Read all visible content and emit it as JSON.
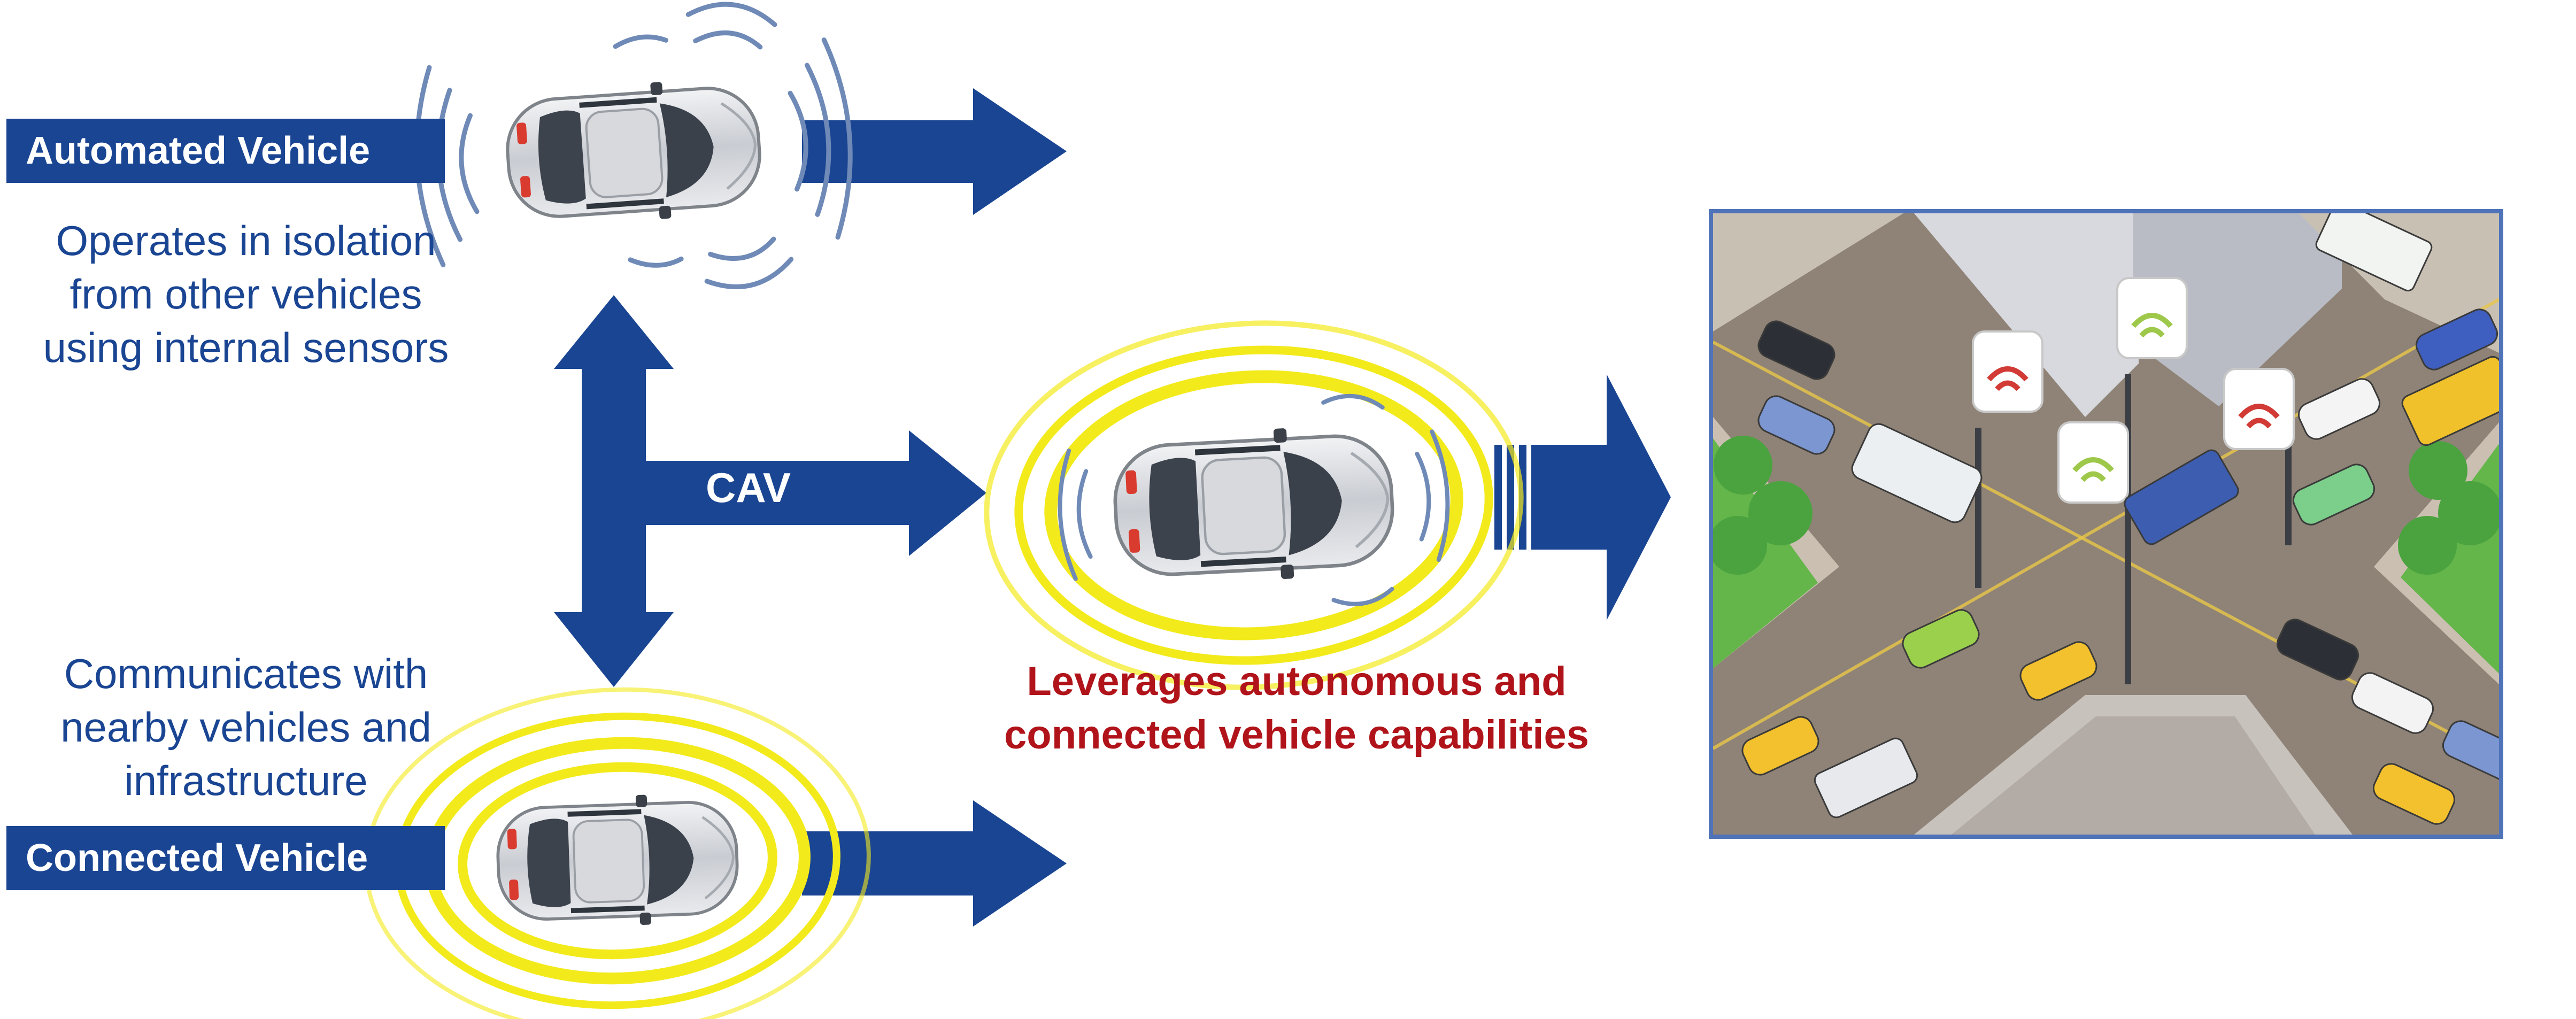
{
  "automated_vehicle": {
    "label": "Automated Vehicle",
    "description": [
      "Operates in isolation",
      "from other vehicles",
      "using internal sensors"
    ]
  },
  "connected_vehicle": {
    "label": "Connected Vehicle",
    "description": [
      "Communicates with",
      "nearby vehicles and",
      "infrastructure"
    ]
  },
  "cav": {
    "label": "CAV",
    "description": [
      "Leverages autonomous and",
      "connected vehicle capabilities"
    ]
  },
  "colors": {
    "brand_blue": "#1a4593",
    "cav_red": "#b0141a",
    "signal_yellow": "#f3ea1c",
    "sensor_wave": "#6f8ab7"
  },
  "icons": [
    "car-top-view-icon",
    "sensor-wave-icon",
    "wifi-signal-icon",
    "city-intersection-illustration"
  ]
}
